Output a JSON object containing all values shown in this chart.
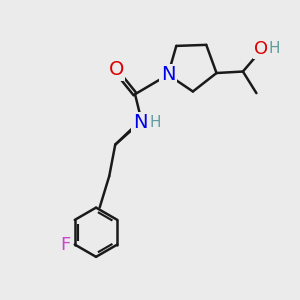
{
  "bg_color": "#ebebeb",
  "bond_color": "#1a1a1a",
  "bond_width": 1.8,
  "atom_colors": {
    "O": "#dd0000",
    "N_blue": "#0000ee",
    "N_gray": "#5f9ea0",
    "F": "#cc44cc",
    "H_gray": "#5f9ea0"
  },
  "font_size_atom": 12,
  "figsize": [
    3.0,
    3.0
  ],
  "dpi": 100,
  "xlim": [
    0,
    10
  ],
  "ylim": [
    0,
    10
  ]
}
